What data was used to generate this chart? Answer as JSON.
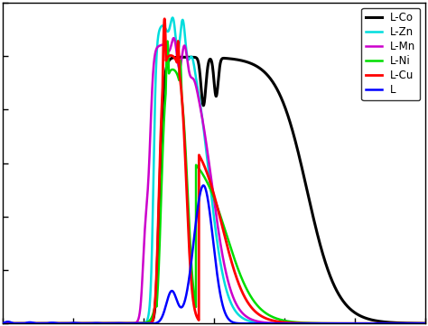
{
  "legend_labels": [
    "L",
    "L-Co",
    "L-Cu",
    "L-Ni",
    "L-Zn",
    "L-Mn"
  ],
  "colors": {
    "L": "#0000ff",
    "L-Co": "#000000",
    "L-Cu": "#ff0000",
    "L-Ni": "#00dd00",
    "L-Zn": "#00dddd",
    "L-Mn": "#cc00cc"
  },
  "linewidths": {
    "L": 1.8,
    "L-Co": 2.2,
    "L-Cu": 2.0,
    "L-Ni": 1.8,
    "L-Zn": 1.8,
    "L-Mn": 1.8
  },
  "background": "#ffffff",
  "xlim": [
    0,
    1
  ],
  "ylim": [
    0,
    1
  ]
}
